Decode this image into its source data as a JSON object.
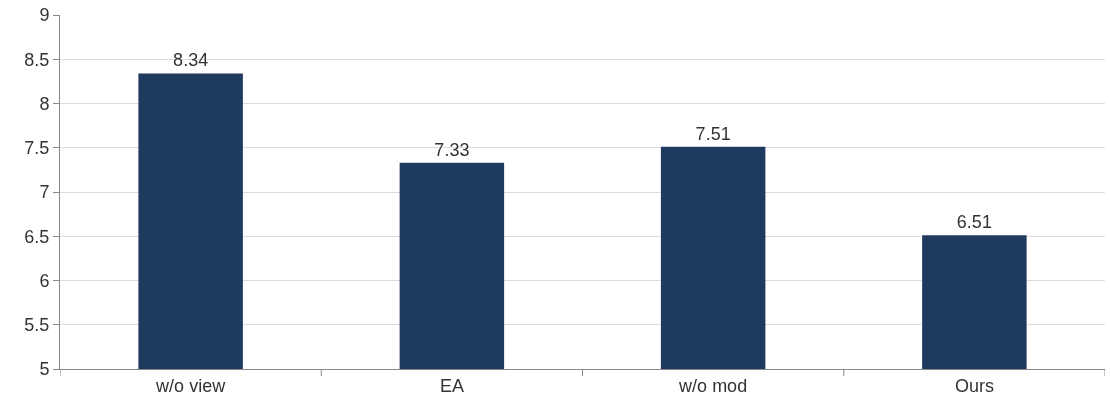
{
  "chart_data": {
    "type": "bar",
    "categories": [
      "w/o view",
      "EA",
      "w/o mod",
      "Ours"
    ],
    "values": [
      8.34,
      7.33,
      7.51,
      6.51
    ],
    "color": "#1f3a5f",
    "ylim": [
      5,
      9
    ],
    "yticks": [
      5,
      5.5,
      6,
      6.5,
      7,
      7.5,
      8,
      8.5,
      9
    ],
    "grid": "y",
    "data_labels": true
  }
}
